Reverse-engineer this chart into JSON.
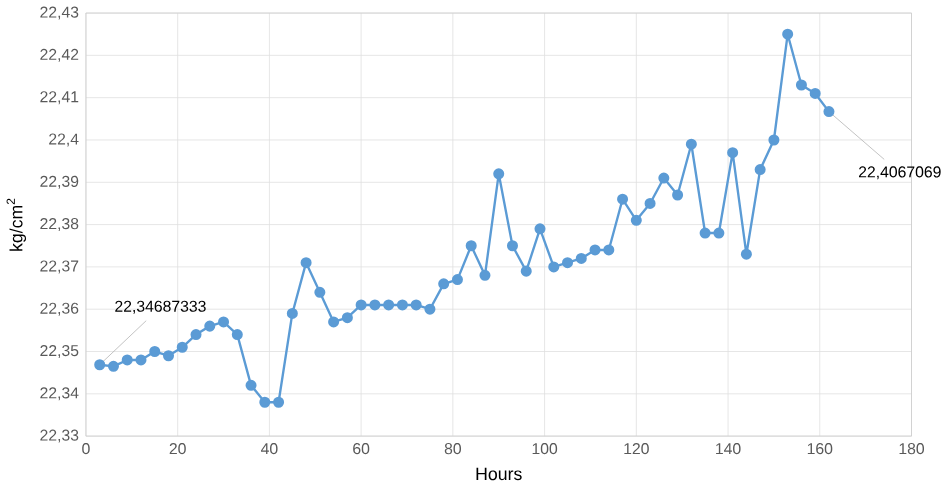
{
  "chart_data": {
    "type": "line",
    "xlabel": "Hours",
    "ylabel": "kg/cm$^{2}$",
    "x": [
      3,
      6,
      9,
      12,
      15,
      18,
      21,
      24,
      27,
      30,
      33,
      36,
      39,
      42,
      45,
      48,
      51,
      54,
      57,
      60,
      63,
      66,
      69,
      72,
      75,
      78,
      81,
      84,
      87,
      90,
      93,
      96,
      99,
      102,
      105,
      108,
      111,
      114,
      117,
      120,
      123,
      126,
      129,
      132,
      135,
      138,
      141,
      144,
      147,
      150,
      153,
      156,
      159,
      162
    ],
    "series": [
      {
        "color": "#5b9bd5",
        "values": [
          22.34687333,
          22.3465,
          22.348,
          22.348,
          22.35,
          22.349,
          22.351,
          22.354,
          22.356,
          22.357,
          22.354,
          22.342,
          22.338,
          22.338,
          22.359,
          22.371,
          22.364,
          22.357,
          22.358,
          22.361,
          22.361,
          22.361,
          22.361,
          22.361,
          22.36,
          22.366,
          22.367,
          22.375,
          22.368,
          22.392,
          22.375,
          22.369,
          22.379,
          22.37,
          22.371,
          22.372,
          22.374,
          22.374,
          22.386,
          22.381,
          22.385,
          22.391,
          22.387,
          22.399,
          22.378,
          22.378,
          22.397,
          22.373,
          22.393,
          22.4,
          22.425,
          22.413,
          22.411,
          22.4067069
        ]
      }
    ],
    "xlim": [
      0,
      180
    ],
    "xticks": [
      0,
      20,
      40,
      60,
      80,
      100,
      120,
      140,
      160,
      180
    ],
    "ylim": [
      22.33,
      22.43
    ],
    "yticks": [
      {
        "value": 22.33,
        "label": "22,33"
      },
      {
        "value": 22.34,
        "label": "22,34"
      },
      {
        "value": 22.35,
        "label": "22,35"
      },
      {
        "value": 22.36,
        "label": "22,36"
      },
      {
        "value": 22.37,
        "label": "22,37"
      },
      {
        "value": 22.38,
        "label": "22,38"
      },
      {
        "value": 22.39,
        "label": "22,39"
      },
      {
        "value": 22.4,
        "label": "22,4"
      },
      {
        "value": 22.41,
        "label": "22,41"
      },
      {
        "value": 22.42,
        "label": "22,42"
      },
      {
        "value": 22.43,
        "label": "22,43"
      }
    ],
    "annotations": [
      {
        "text": "22,34687333",
        "x": 3,
        "y": 22.34687333
      },
      {
        "text": "22,4067069",
        "x": 162,
        "y": 22.4067069
      }
    ],
    "grid": true,
    "marker": "circle",
    "line_style": "solid"
  }
}
